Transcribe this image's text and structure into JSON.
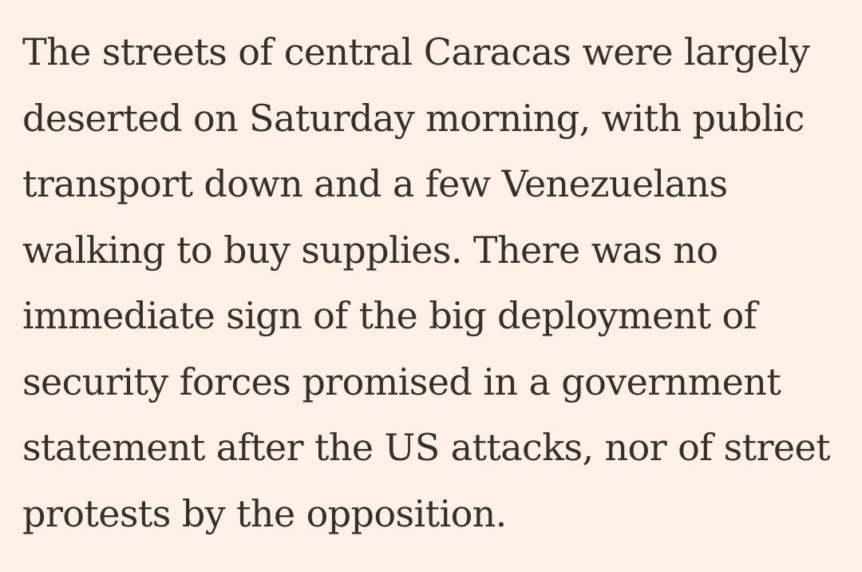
{
  "background_color": "#FDF1E7",
  "text_color": "#33302E",
  "article": {
    "lines": [
      "The streets of central Caracas were largely",
      "deserted on Saturday morning, with public",
      "transport down and a few Venezuelans",
      "walking to buy supplies. There was no",
      "immediate sign of the big deployment of",
      "security forces promised in a government",
      "statement after the US attacks, nor of street",
      "protests by the opposition."
    ]
  }
}
